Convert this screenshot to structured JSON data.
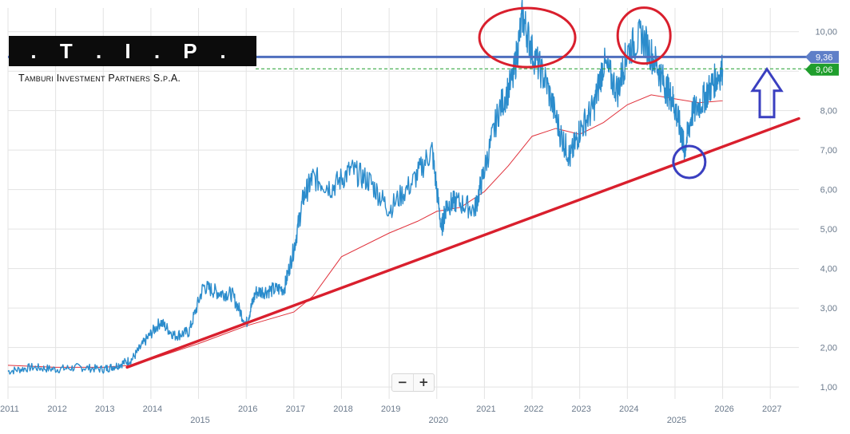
{
  "logo": {
    "text": ". T . I . P .",
    "company": "Tamburi Investment Partners S.p.A."
  },
  "zoom": {
    "minus": "−",
    "plus": "+"
  },
  "colors": {
    "price": "#2b8ccc",
    "moving_average": "#e0323c",
    "trendline": "#d91f2d",
    "resistance": "#4f6fbe",
    "last_price_badge": "#1f9e2c",
    "level_badge": "#5f7fc8",
    "top_marker": "#d91f2d",
    "low_marker": "#3a3fc0",
    "arrow": "#3a3fc0"
  },
  "chart_data": {
    "type": "line",
    "y_ticks": [
      "1,00",
      "2,00",
      "3,00",
      "4,00",
      "5,00",
      "6,00",
      "7,00",
      "8,00",
      "9,00",
      "10,00"
    ],
    "ylim": [
      0.7,
      10.6
    ],
    "x_ticks_upper": [
      "2011",
      "2012",
      "2013",
      "2014",
      "2016",
      "2017",
      "2018",
      "2019",
      "2021",
      "2022",
      "2023",
      "2024",
      "2026",
      "2027"
    ],
    "x_ticks_lower": [
      "2015",
      "2020",
      "2025"
    ],
    "xlim": [
      2011.0,
      2027.6
    ],
    "grid": true,
    "price_series": {
      "x": [
        2011.0,
        2011.5,
        2012.0,
        2012.5,
        2013.0,
        2013.3,
        2013.6,
        2013.9,
        2014.2,
        2014.5,
        2014.8,
        2015.1,
        2015.4,
        2015.7,
        2016.0,
        2016.2,
        2016.5,
        2016.8,
        2017.0,
        2017.2,
        2017.4,
        2017.8,
        2018.2,
        2018.6,
        2019.0,
        2019.5,
        2019.9,
        2020.1,
        2020.2,
        2020.4,
        2020.8,
        2021.0,
        2021.3,
        2021.6,
        2021.8,
        2022.0,
        2022.3,
        2022.6,
        2022.8,
        2023.0,
        2023.3,
        2023.5,
        2023.8,
        2024.0,
        2024.3,
        2024.6,
        2024.8,
        2024.95,
        2025.1,
        2025.2,
        2025.35,
        2025.6,
        2025.8,
        2026.0
      ],
      "y": [
        1.4,
        1.5,
        1.45,
        1.5,
        1.45,
        1.55,
        1.7,
        2.2,
        2.65,
        2.3,
        2.4,
        3.55,
        3.4,
        3.35,
        2.6,
        3.4,
        3.45,
        3.5,
        4.5,
        5.8,
        6.3,
        6.05,
        6.5,
        6.2,
        5.5,
        6.2,
        7.0,
        5.0,
        5.6,
        5.7,
        5.5,
        6.5,
        8.0,
        8.8,
        10.4,
        9.5,
        8.7,
        7.4,
        6.8,
        7.5,
        8.1,
        9.2,
        8.5,
        9.5,
        9.9,
        9.2,
        8.6,
        8.3,
        7.6,
        7.0,
        7.9,
        8.3,
        8.7,
        9.05
      ]
    },
    "moving_average": {
      "x": [
        2011.0,
        2012.0,
        2013.0,
        2013.6,
        2014.0,
        2015.0,
        2016.0,
        2017.0,
        2017.4,
        2018.0,
        2019.0,
        2019.6,
        2020.0,
        2020.5,
        2021.0,
        2021.5,
        2022.0,
        2022.5,
        2023.0,
        2023.5,
        2024.0,
        2024.5,
        2025.0,
        2025.5,
        2026.0
      ],
      "y": [
        1.55,
        1.5,
        1.5,
        1.55,
        1.7,
        2.1,
        2.55,
        2.9,
        3.3,
        4.3,
        4.9,
        5.2,
        5.45,
        5.55,
        5.95,
        6.6,
        7.35,
        7.55,
        7.4,
        7.7,
        8.15,
        8.4,
        8.3,
        8.2,
        8.25
      ]
    },
    "trendline": {
      "x": [
        2013.5,
        2027.6
      ],
      "y": [
        1.5,
        7.8
      ]
    },
    "resistance_level": 9.36,
    "last_price": 9.06,
    "badges": [
      "9,36",
      "9,06"
    ],
    "highlighted_tops": [
      2021.9,
      2024.35
    ],
    "highlighted_low": 2025.3
  }
}
